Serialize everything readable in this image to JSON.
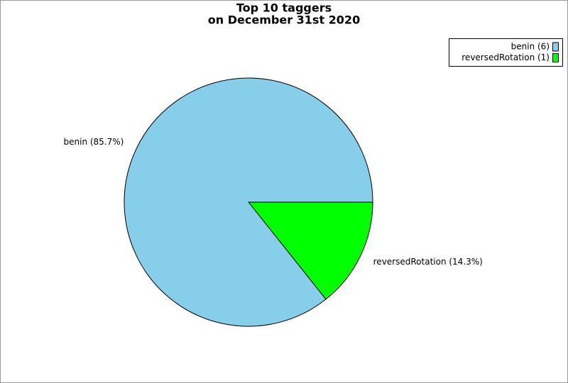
{
  "chart_data": {
    "type": "pie",
    "title": [
      "Top 10 taggers",
      "on December 31st 2020"
    ],
    "categories": [
      "benin",
      "reversedRotation"
    ],
    "values": [
      85.7,
      14.3
    ],
    "value_labels": [
      "benin (85.7%)",
      "reversedRotation (14.3%)"
    ],
    "counts": [
      6,
      1
    ],
    "legend_labels": [
      "benin (6)",
      "reversedRotation (1)"
    ],
    "colors": [
      "#87ceeb",
      "#00ff00"
    ],
    "legend": "top-right"
  }
}
